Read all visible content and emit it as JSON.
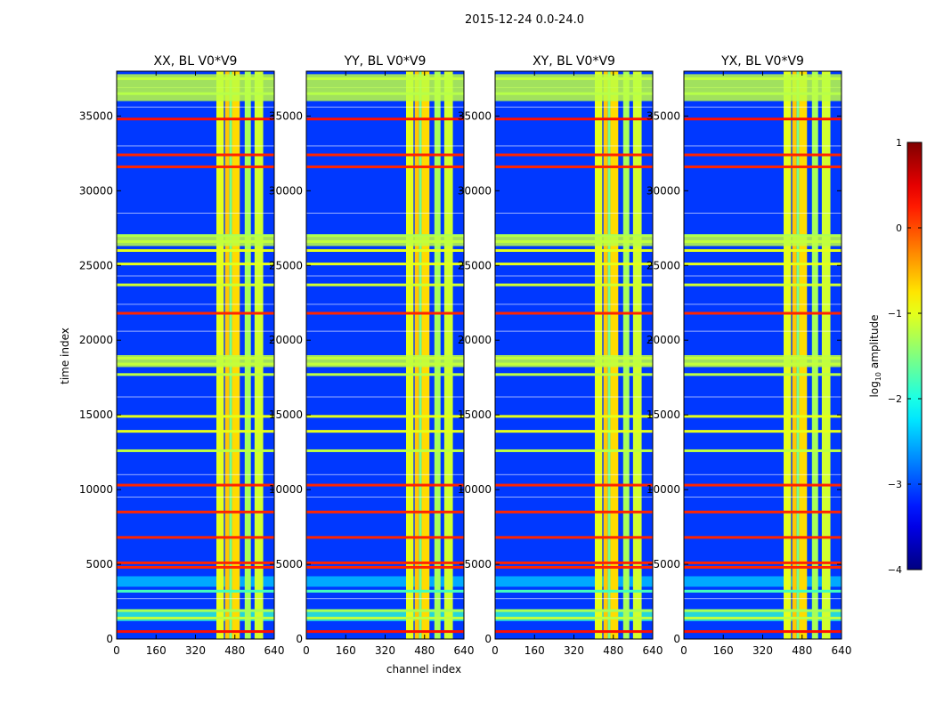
{
  "chart_data": {
    "type": "heatmap",
    "suptitle": "2015-12-24 0.0-24.0",
    "xlabel": "channel index",
    "ylabel": "time index",
    "xlim": [
      0,
      640
    ],
    "ylim": [
      0,
      38000
    ],
    "xticks": [
      0,
      160,
      320,
      480,
      640
    ],
    "yticks": [
      0,
      5000,
      10000,
      15000,
      20000,
      25000,
      30000,
      35000
    ],
    "colorbar": {
      "label_prefix": "log",
      "label_sub": "10",
      "label_suffix": " amplitude",
      "min": -4,
      "max": 1,
      "ticks": [
        1,
        0,
        -1,
        -2,
        -3,
        -4
      ],
      "tick_labels": [
        "1",
        "0",
        "−1",
        "−2",
        "−3",
        "−4"
      ],
      "colormap": "jet"
    },
    "panels": [
      {
        "title": "XX, BL V0*V9"
      },
      {
        "title": "YY, BL V0*V9"
      },
      {
        "title": "XY, BL V0*V9"
      },
      {
        "title": "YX, BL V0*V9"
      }
    ],
    "rfi_channel_bands": [
      {
        "from": 405,
        "to": 435,
        "value": -1.0
      },
      {
        "from": 440,
        "to": 458,
        "value": -0.6
      },
      {
        "from": 458,
        "to": 468,
        "value": -1.6
      },
      {
        "from": 468,
        "to": 500,
        "value": -0.7
      },
      {
        "from": 520,
        "to": 545,
        "value": -1.3
      },
      {
        "from": 560,
        "to": 595,
        "value": -1.1
      }
    ],
    "flagged_time_rows": [
      {
        "t": 500,
        "value": 0.3
      },
      {
        "t": 1400,
        "value": -1.2
      },
      {
        "t": 1900,
        "value": -1.3
      },
      {
        "t": 3200,
        "value": -1.8
      },
      {
        "t": 4800,
        "value": 0.2
      },
      {
        "t": 5100,
        "value": 0.2
      },
      {
        "t": 6800,
        "value": 0.2
      },
      {
        "t": 8500,
        "value": 0.2
      },
      {
        "t": 10300,
        "value": 0.2
      },
      {
        "t": 12600,
        "value": -1.2
      },
      {
        "t": 13900,
        "value": -1.0
      },
      {
        "t": 14900,
        "value": -1.0
      },
      {
        "t": 17700,
        "value": -1.2
      },
      {
        "t": 18400,
        "value": -1.0
      },
      {
        "t": 18800,
        "value": -0.9
      },
      {
        "t": 21800,
        "value": 0.2
      },
      {
        "t": 23700,
        "value": -1.1
      },
      {
        "t": 25100,
        "value": -1.0
      },
      {
        "t": 26000,
        "value": -1.0
      },
      {
        "t": 26600,
        "value": -1.0
      },
      {
        "t": 27000,
        "value": -1.3
      },
      {
        "t": 31600,
        "value": 0.2
      },
      {
        "t": 32400,
        "value": 0.2
      },
      {
        "t": 34800,
        "value": 0.3
      },
      {
        "t": 36500,
        "value": -1.4
      },
      {
        "t": 37500,
        "value": -1.0
      }
    ],
    "background_value": -3.1
  }
}
